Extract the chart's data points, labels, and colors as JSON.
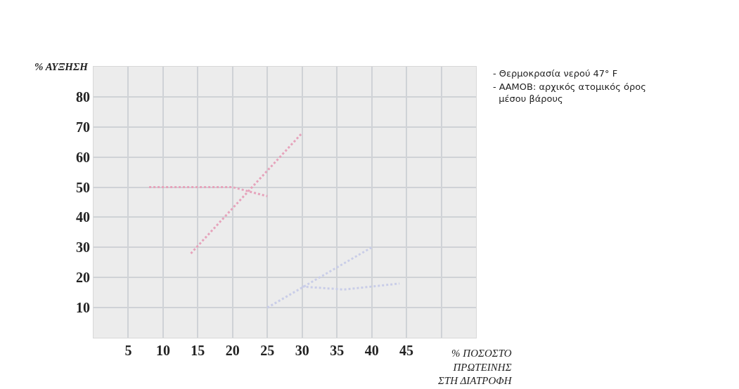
{
  "chart_data": {
    "type": "line",
    "xlabel": "% ΠΟΣΟΣΤΟ\nΠΡΩΤΕΙΝΗΣ\nΣΤΗ ΔΙΑΤΡΟΦΗ",
    "ylabel": "% ΑΥΞΗΣΗ",
    "annotations": [
      "- Θερμοκρασία νερού 47° F",
      "- ΑΑΜΟΒ: αρχικός ατομικός όρος\n  μέσου βάρους"
    ],
    "series": [
      {
        "color": "#e6a3bb",
        "x": [
          14,
          30
        ],
        "values": [
          28,
          68
        ]
      },
      {
        "color": "#e6a3bb",
        "x": [
          8,
          20,
          25
        ],
        "values": [
          50,
          50,
          47
        ]
      },
      {
        "color": "#c9cde8",
        "x": [
          25,
          40
        ],
        "values": [
          10,
          30
        ]
      },
      {
        "color": "#c9cde8",
        "x": [
          30,
          36,
          44
        ],
        "values": [
          17,
          16,
          18
        ]
      }
    ],
    "xlim": [
      0,
      55
    ],
    "ylim": [
      0,
      90
    ],
    "xticks": [
      5,
      10,
      15,
      20,
      25,
      30,
      35,
      40,
      45,
      {
        "value": 50,
        "label": null
      }
    ],
    "yticks": [
      10,
      20,
      30,
      40,
      50,
      60,
      70,
      80
    ],
    "grid": true,
    "marker": "none",
    "line_style": "dotted"
  }
}
